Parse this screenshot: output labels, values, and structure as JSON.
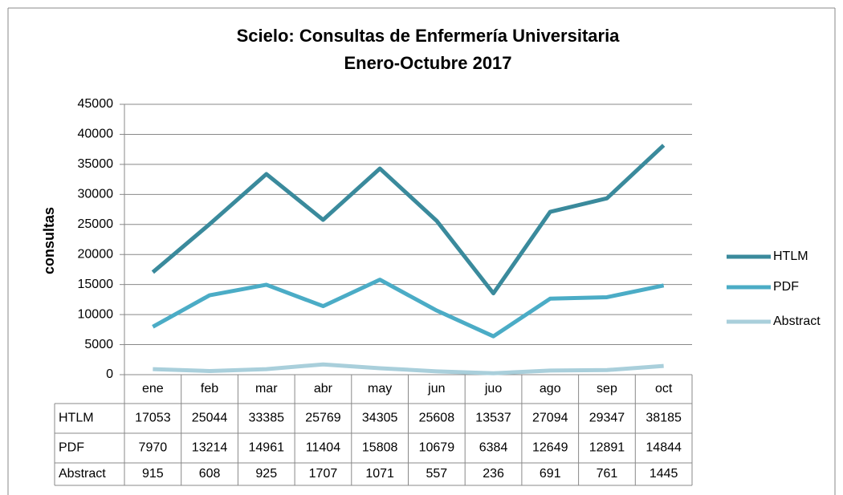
{
  "chart_data": {
    "type": "line",
    "title": [
      "Scielo: Consultas de Enfermería Universitaria",
      "Enero-Octubre 2017"
    ],
    "ylabel": "consultas",
    "categories": [
      "ene",
      "feb",
      "mar",
      "abr",
      "may",
      "jun",
      "juo",
      "ago",
      "sep",
      "oct"
    ],
    "series": [
      {
        "name": "HTLM",
        "color": "#3a8a9c",
        "values": [
          17053,
          25044,
          33385,
          25769,
          34305,
          25608,
          13537,
          27094,
          29347,
          38185
        ]
      },
      {
        "name": "PDF",
        "color": "#4bacc6",
        "values": [
          7970,
          13214,
          14961,
          11404,
          15808,
          10679,
          6384,
          12649,
          12891,
          14844
        ]
      },
      {
        "name": "Abstract",
        "color": "#a9cfdb",
        "values": [
          915,
          608,
          925,
          1707,
          1071,
          557,
          236,
          691,
          761,
          1445
        ]
      }
    ],
    "ylim": [
      0,
      45000
    ],
    "yticks": [
      0,
      5000,
      10000,
      15000,
      20000,
      25000,
      30000,
      35000,
      40000,
      45000
    ],
    "grid": true,
    "legend": "right",
    "data_table": true
  }
}
